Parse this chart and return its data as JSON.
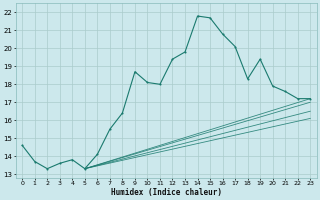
{
  "xlabel": "Humidex (Indice chaleur)",
  "bg_color": "#cce8ec",
  "grid_color": "#aacccc",
  "line_color": "#1a7a6e",
  "xlim": [
    -0.5,
    23.5
  ],
  "ylim": [
    12.8,
    22.5
  ],
  "yticks": [
    13,
    14,
    15,
    16,
    17,
    18,
    19,
    20,
    21,
    22
  ],
  "xticks": [
    0,
    1,
    2,
    3,
    4,
    5,
    6,
    7,
    8,
    9,
    10,
    11,
    12,
    13,
    14,
    15,
    16,
    17,
    18,
    19,
    20,
    21,
    22,
    23
  ],
  "line1_x": [
    0,
    1,
    2,
    3,
    4,
    5,
    6,
    7,
    8,
    9,
    10,
    11,
    12,
    13,
    14,
    15,
    16,
    17,
    18,
    19,
    20,
    21,
    22,
    23
  ],
  "line1_y": [
    14.6,
    13.7,
    13.3,
    13.6,
    13.8,
    13.3,
    14.1,
    15.5,
    16.4,
    18.7,
    18.1,
    18.0,
    19.4,
    19.8,
    21.8,
    21.7,
    20.8,
    20.1,
    18.3,
    19.4,
    17.9,
    17.6,
    17.2,
    17.2
  ],
  "fan_origin_x": 5,
  "fan_origin_y": 13.3,
  "fan_lines": [
    {
      "end_x": 23,
      "end_y": 17.2
    },
    {
      "end_x": 23,
      "end_y": 17.0
    },
    {
      "end_x": 23,
      "end_y": 16.5
    },
    {
      "end_x": 23,
      "end_y": 16.1
    }
  ]
}
